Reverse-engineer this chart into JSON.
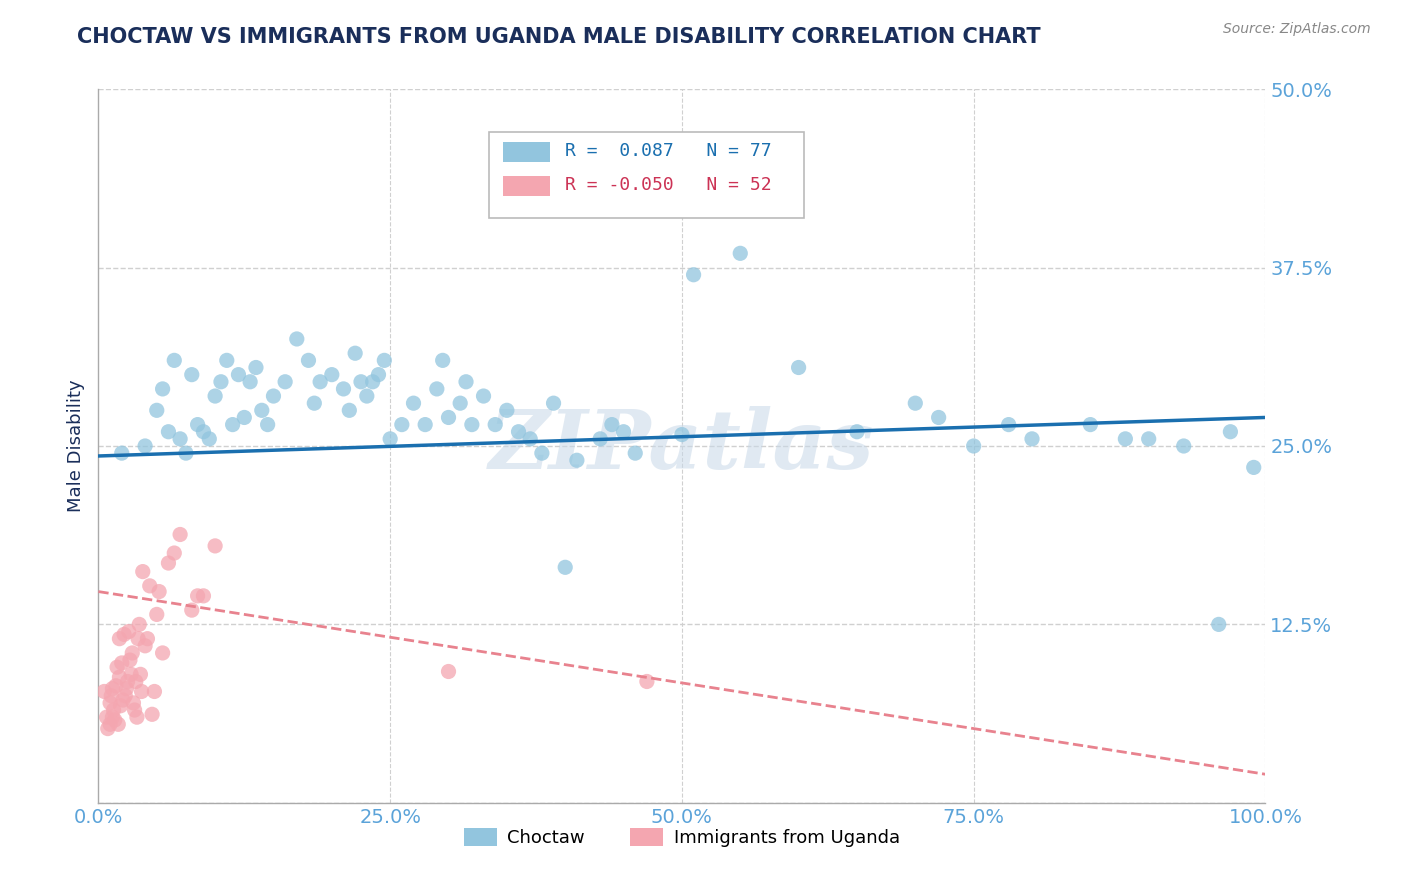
{
  "title": "CHOCTAW VS IMMIGRANTS FROM UGANDA MALE DISABILITY CORRELATION CHART",
  "source_text": "Source: ZipAtlas.com",
  "ylabel": "Male Disability",
  "xlim": [
    0.0,
    1.0
  ],
  "ylim": [
    0.0,
    0.5
  ],
  "yticks": [
    0.0,
    0.125,
    0.25,
    0.375,
    0.5
  ],
  "ytick_labels": [
    "",
    "12.5%",
    "25.0%",
    "37.5%",
    "50.0%"
  ],
  "xticks": [
    0.0,
    0.25,
    0.5,
    0.75,
    1.0
  ],
  "xtick_labels": [
    "0.0%",
    "25.0%",
    "50.0%",
    "75.0%",
    "100.0%"
  ],
  "choctaw_R": 0.087,
  "choctaw_N": 77,
  "uganda_R": -0.05,
  "uganda_N": 52,
  "choctaw_color": "#92c5de",
  "uganda_color": "#f4a6b0",
  "choctaw_line_color": "#1a6faf",
  "uganda_line_color": "#e8828e",
  "watermark": "ZIPatlas",
  "background_color": "#ffffff",
  "title_color": "#1a2e5a",
  "axis_label_color": "#1a2e5a",
  "tick_label_color": "#5ba3d9",
  "grid_color": "#d0d0d0",
  "choctaw_line_y0": 0.243,
  "choctaw_line_y1": 0.27,
  "uganda_line_y0": 0.148,
  "uganda_line_y1": 0.02,
  "choctaw_x": [
    0.02,
    0.04,
    0.05,
    0.055,
    0.06,
    0.065,
    0.07,
    0.075,
    0.08,
    0.085,
    0.09,
    0.095,
    0.1,
    0.105,
    0.11,
    0.115,
    0.12,
    0.125,
    0.13,
    0.135,
    0.14,
    0.145,
    0.15,
    0.16,
    0.17,
    0.18,
    0.185,
    0.19,
    0.2,
    0.21,
    0.215,
    0.22,
    0.225,
    0.23,
    0.235,
    0.24,
    0.245,
    0.25,
    0.26,
    0.27,
    0.28,
    0.29,
    0.295,
    0.3,
    0.31,
    0.315,
    0.32,
    0.33,
    0.34,
    0.35,
    0.36,
    0.37,
    0.38,
    0.39,
    0.4,
    0.41,
    0.43,
    0.44,
    0.45,
    0.46,
    0.5,
    0.51,
    0.55,
    0.6,
    0.65,
    0.7,
    0.72,
    0.75,
    0.78,
    0.8,
    0.85,
    0.88,
    0.9,
    0.93,
    0.96,
    0.97,
    0.99
  ],
  "choctaw_y": [
    0.245,
    0.25,
    0.275,
    0.29,
    0.26,
    0.31,
    0.255,
    0.245,
    0.3,
    0.265,
    0.26,
    0.255,
    0.285,
    0.295,
    0.31,
    0.265,
    0.3,
    0.27,
    0.295,
    0.305,
    0.275,
    0.265,
    0.285,
    0.295,
    0.325,
    0.31,
    0.28,
    0.295,
    0.3,
    0.29,
    0.275,
    0.315,
    0.295,
    0.285,
    0.295,
    0.3,
    0.31,
    0.255,
    0.265,
    0.28,
    0.265,
    0.29,
    0.31,
    0.27,
    0.28,
    0.295,
    0.265,
    0.285,
    0.265,
    0.275,
    0.26,
    0.255,
    0.245,
    0.28,
    0.165,
    0.24,
    0.255,
    0.265,
    0.26,
    0.245,
    0.258,
    0.37,
    0.385,
    0.305,
    0.26,
    0.28,
    0.27,
    0.25,
    0.265,
    0.255,
    0.265,
    0.255,
    0.255,
    0.25,
    0.125,
    0.26,
    0.235
  ],
  "uganda_x": [
    0.005,
    0.007,
    0.008,
    0.01,
    0.01,
    0.011,
    0.012,
    0.012,
    0.013,
    0.014,
    0.015,
    0.016,
    0.017,
    0.018,
    0.018,
    0.019,
    0.02,
    0.021,
    0.022,
    0.023,
    0.024,
    0.025,
    0.026,
    0.027,
    0.028,
    0.029,
    0.03,
    0.031,
    0.032,
    0.033,
    0.034,
    0.035,
    0.036,
    0.037,
    0.038,
    0.04,
    0.042,
    0.044,
    0.046,
    0.048,
    0.05,
    0.052,
    0.055,
    0.06,
    0.065,
    0.07,
    0.08,
    0.085,
    0.09,
    0.1,
    0.3,
    0.47
  ],
  "uganda_y": [
    0.078,
    0.06,
    0.052,
    0.055,
    0.07,
    0.075,
    0.06,
    0.08,
    0.065,
    0.058,
    0.082,
    0.095,
    0.055,
    0.115,
    0.088,
    0.068,
    0.098,
    0.072,
    0.118,
    0.075,
    0.08,
    0.085,
    0.12,
    0.1,
    0.09,
    0.105,
    0.07,
    0.065,
    0.085,
    0.06,
    0.115,
    0.125,
    0.09,
    0.078,
    0.162,
    0.11,
    0.115,
    0.152,
    0.062,
    0.078,
    0.132,
    0.148,
    0.105,
    0.168,
    0.175,
    0.188,
    0.135,
    0.145,
    0.145,
    0.18,
    0.092,
    0.085
  ]
}
